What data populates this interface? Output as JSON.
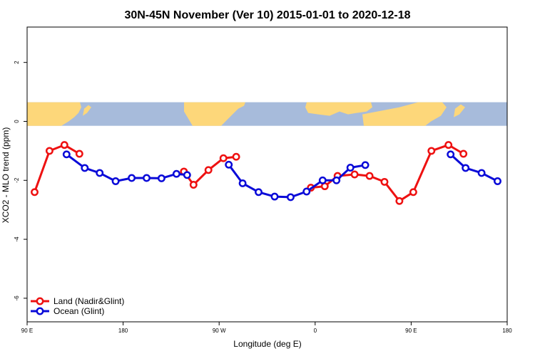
{
  "chart_data": {
    "type": "line",
    "title": "30N-45N November (Ver 10)   2015-01-01 to 2020-12-18",
    "xlabel": "Longitude (deg E)",
    "ylabel": "XCO2 - MLO trend (ppm)",
    "xlim": [
      90,
      450
    ],
    "ylim": [
      -6.8,
      3.2
    ],
    "x_ticks": [
      {
        "value": 90,
        "label": "90 E"
      },
      {
        "value": 180,
        "label": "180"
      },
      {
        "value": 270,
        "label": "90 W"
      },
      {
        "value": 360,
        "label": "0"
      },
      {
        "value": 450,
        "label": "90 E"
      },
      {
        "value": 540,
        "label": "180"
      }
    ],
    "y_ticks": [
      {
        "value": 2,
        "label": "2"
      },
      {
        "value": 0,
        "label": "0"
      },
      {
        "value": -2,
        "label": "-2"
      },
      {
        "value": -4,
        "label": "-4"
      },
      {
        "value": -6,
        "label": "-6"
      }
    ],
    "map_band": {
      "ymin": -0.15,
      "ymax": 0.65,
      "ocean_color": "#a7bbdb",
      "land_color": "#fdd77a"
    },
    "legend_position": "bottom-left",
    "series": [
      {
        "name": "Land (Nadir&Glint)",
        "color": "#ee1111",
        "segments": [
          {
            "x": [
              97,
              111,
              125,
              139
            ],
            "y": [
              -2.4,
              -1.0,
              -0.8,
              -1.1
            ]
          },
          {
            "x": [
              237,
              246,
              260,
              274,
              286
            ],
            "y": [
              -1.7,
              -2.15,
              -1.65,
              -1.25,
              -1.2
            ]
          },
          {
            "x": [
              356,
              369,
              381,
              397,
              411,
              425,
              439,
              452,
              469,
              485,
              499
            ],
            "y": [
              -2.25,
              -2.2,
              -1.85,
              -1.8,
              -1.85,
              -2.05,
              -2.7,
              -2.4,
              -1.0,
              -0.8,
              -1.1
            ]
          }
        ]
      },
      {
        "name": "Ocean (Glint)",
        "color": "#0a0ad8",
        "segments": [
          {
            "x": [
              127,
              144,
              158,
              173,
              188,
              202,
              216,
              230,
              240
            ],
            "y": [
              -1.12,
              -1.58,
              -1.75,
              -2.03,
              -1.92,
              -1.92,
              -1.93,
              -1.78,
              -1.82
            ]
          },
          {
            "x": [
              279,
              292,
              307,
              322,
              337,
              352,
              367,
              380,
              393,
              407
            ],
            "y": [
              -1.47,
              -2.1,
              -2.4,
              -2.55,
              -2.57,
              -2.38,
              -2.0,
              -2.0,
              -1.57,
              -1.48
            ]
          },
          {
            "x": [
              487,
              501,
              516,
              531
            ],
            "y": [
              -1.12,
              -1.58,
              -1.75,
              -2.03
            ]
          }
        ]
      }
    ]
  }
}
